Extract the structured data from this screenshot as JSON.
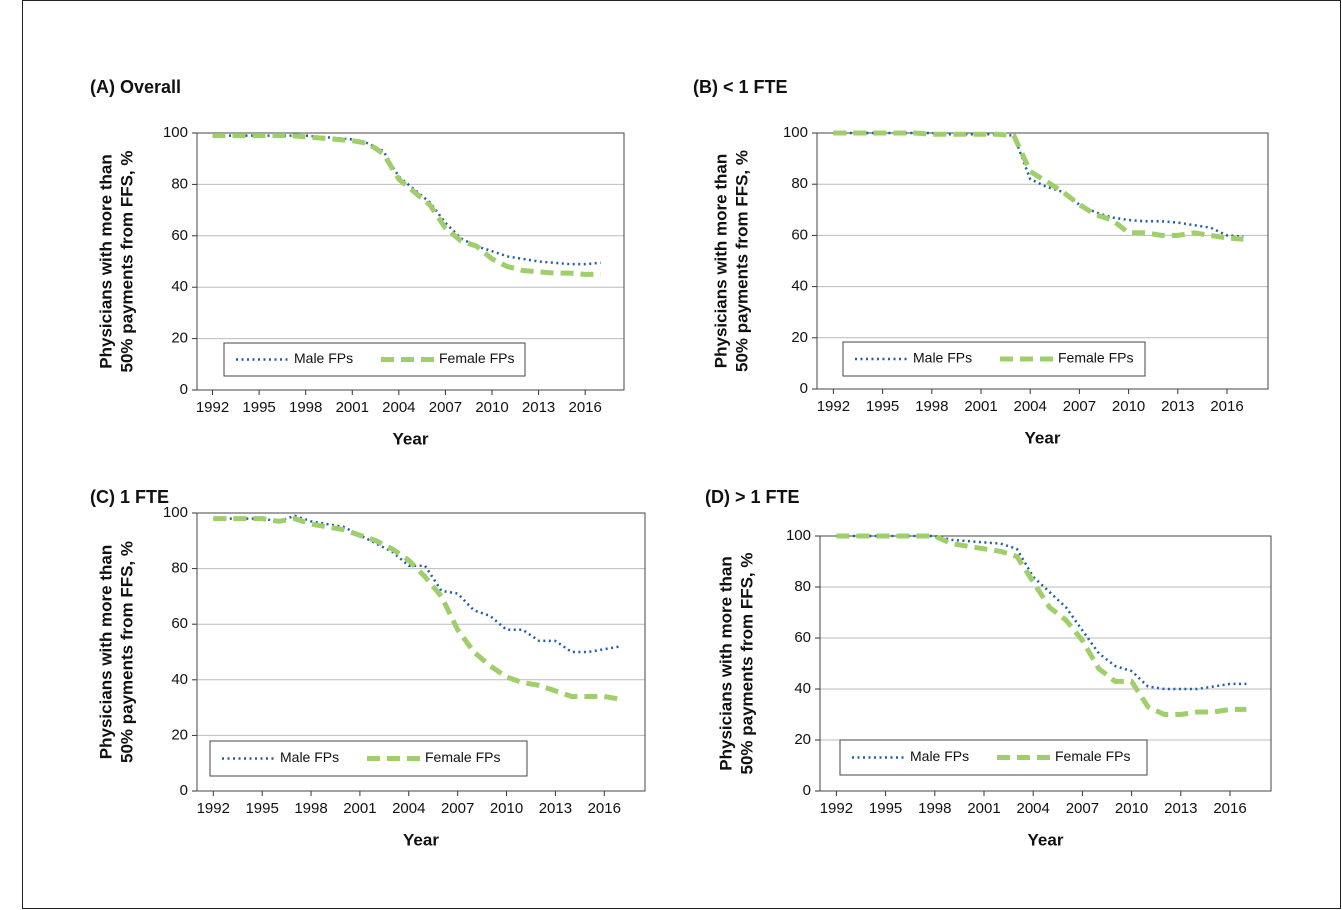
{
  "chart_data": [
    {
      "type": "line",
      "title": "(A) Overall",
      "xlabel": "Year",
      "ylabel": [
        "Physicians with more than",
        "50% payments from FFS, %"
      ],
      "x": [
        1992,
        1993,
        1994,
        1995,
        1996,
        1997,
        1998,
        1999,
        2000,
        2001,
        2002,
        2003,
        2004,
        2005,
        2006,
        2007,
        2008,
        2009,
        2010,
        2011,
        2012,
        2013,
        2014,
        2015,
        2016,
        2017
      ],
      "series": [
        {
          "name": "Male FPs",
          "color": "#1f5fa6",
          "values": [
            99,
            99,
            99,
            99,
            99,
            99,
            99,
            98.5,
            98,
            97.5,
            96,
            93,
            83,
            78,
            73,
            65,
            59,
            56,
            54,
            52,
            51,
            50,
            49.5,
            49,
            49,
            49.5
          ]
        },
        {
          "name": "Female FPs",
          "color": "#9fcf6a",
          "values": [
            99,
            99,
            99,
            99,
            99,
            99,
            98.5,
            98,
            97.5,
            97,
            96,
            92,
            82,
            77,
            72,
            63,
            58,
            56,
            51,
            48,
            46.5,
            46,
            45.5,
            45.5,
            45,
            45
          ]
        }
      ],
      "xlim": [
        1991,
        2018.5
      ],
      "ylim": [
        0,
        100
      ],
      "xticks": [
        1992,
        1995,
        1998,
        2001,
        2004,
        2007,
        2010,
        2013,
        2016
      ],
      "yticks": [
        0,
        20,
        40,
        60,
        80,
        100
      ],
      "grid": true,
      "legend": "lower left"
    },
    {
      "type": "line",
      "title": "(B) < 1 FTE",
      "xlabel": "Year",
      "ylabel": [
        "Physicians with more than",
        "50% payments from FFS, %"
      ],
      "x": [
        1992,
        1993,
        1994,
        1995,
        1996,
        1997,
        1998,
        1999,
        2000,
        2001,
        2002,
        2003,
        2004,
        2005,
        2006,
        2007,
        2008,
        2009,
        2010,
        2011,
        2012,
        2013,
        2014,
        2015,
        2016,
        2017
      ],
      "series": [
        {
          "name": "Male FPs",
          "color": "#1f5fa6",
          "values": [
            100,
            100,
            100,
            100,
            100,
            100,
            100,
            99.5,
            99.5,
            99.5,
            99.5,
            99,
            82,
            79,
            77,
            72,
            69,
            67,
            66,
            65.5,
            65.5,
            65,
            64,
            63,
            60,
            59.5
          ]
        },
        {
          "name": "Female FPs",
          "color": "#9fcf6a",
          "values": [
            100,
            100,
            100,
            100,
            100,
            100,
            99.5,
            99.5,
            99.5,
            99.5,
            99.5,
            99,
            85,
            81,
            77,
            72,
            68,
            66,
            61,
            61,
            60,
            60,
            61,
            60,
            59,
            58.5
          ]
        }
      ],
      "xlim": [
        1991,
        2018.5
      ],
      "ylim": [
        0,
        100
      ],
      "xticks": [
        1992,
        1995,
        1998,
        2001,
        2004,
        2007,
        2010,
        2013,
        2016
      ],
      "yticks": [
        0,
        20,
        40,
        60,
        80,
        100
      ],
      "grid": true,
      "legend": "lower left"
    },
    {
      "type": "line",
      "title": "(C) 1 FTE",
      "xlabel": "Year",
      "ylabel": [
        "Physicians with more than",
        "50% payments from FFS, %"
      ],
      "x": [
        1992,
        1993,
        1994,
        1995,
        1996,
        1997,
        1998,
        1999,
        2000,
        2001,
        2002,
        2003,
        2004,
        2005,
        2006,
        2007,
        2008,
        2009,
        2010,
        2011,
        2012,
        2013,
        2014,
        2015,
        2016,
        2017
      ],
      "series": [
        {
          "name": "Male FPs",
          "color": "#1f5fa6",
          "values": [
            98,
            98,
            98,
            98,
            97,
            99,
            97,
            96,
            95,
            92,
            89,
            86,
            81,
            81,
            72,
            71,
            65,
            63,
            58,
            58,
            54,
            54,
            50,
            50,
            51,
            52
          ]
        },
        {
          "name": "Female FPs",
          "color": "#9fcf6a",
          "values": [
            98,
            98,
            98,
            98,
            97,
            98,
            96,
            95,
            94,
            92,
            90,
            87,
            83,
            77,
            70,
            58,
            50,
            45,
            41,
            39,
            38,
            36,
            34,
            34,
            34,
            33
          ]
        }
      ],
      "xlim": [
        1991,
        2018.5
      ],
      "ylim": [
        0,
        100
      ],
      "xticks": [
        1992,
        1995,
        1998,
        2001,
        2004,
        2007,
        2010,
        2013,
        2016
      ],
      "yticks": [
        0,
        20,
        40,
        60,
        80,
        100
      ],
      "grid": true,
      "legend": "lower left"
    },
    {
      "type": "line",
      "title": "(D) > 1 FTE",
      "xlabel": "Year",
      "ylabel": [
        "Physicians with more than",
        "50% payments from FFS, %"
      ],
      "x": [
        1992,
        1993,
        1994,
        1995,
        1996,
        1997,
        1998,
        1999,
        2000,
        2001,
        2002,
        2003,
        2004,
        2005,
        2006,
        2007,
        2008,
        2009,
        2010,
        2011,
        2012,
        2013,
        2014,
        2015,
        2016,
        2017
      ],
      "series": [
        {
          "name": "Male FPs",
          "color": "#1f5fa6",
          "values": [
            100,
            100,
            100,
            100,
            100,
            100,
            100,
            98.5,
            98,
            97.5,
            97,
            95,
            84,
            78,
            72,
            63,
            54,
            49,
            47,
            41,
            40,
            40,
            40,
            41,
            42,
            42
          ]
        },
        {
          "name": "Female FPs",
          "color": "#9fcf6a",
          "values": [
            100,
            100,
            100,
            100,
            100,
            100,
            100,
            97,
            96,
            95,
            94,
            92,
            82,
            72,
            67,
            59,
            48,
            43,
            43,
            33,
            30,
            30,
            31,
            31,
            32,
            32
          ]
        }
      ],
      "xlim": [
        1991,
        2018.5
      ],
      "ylim": [
        0,
        100
      ],
      "xticks": [
        1992,
        1995,
        1998,
        2001,
        2004,
        2007,
        2010,
        2013,
        2016
      ],
      "yticks": [
        0,
        20,
        40,
        60,
        80,
        100
      ],
      "grid": true,
      "legend": "lower left"
    }
  ]
}
